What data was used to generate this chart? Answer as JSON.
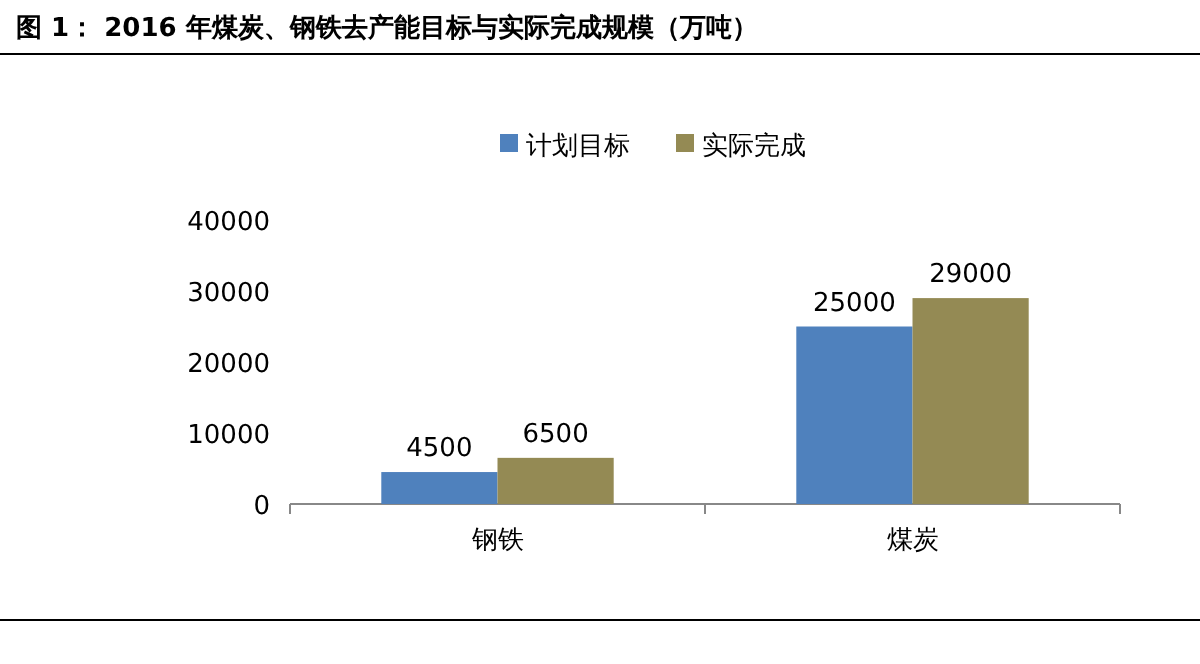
{
  "chart_data": {
    "type": "bar",
    "title": "图 1：    2016 年煤炭、钢铁去产能目标与实际完成规模（万吨）",
    "categories": [
      "钢铁",
      "煤炭"
    ],
    "series": [
      {
        "name": "计划目标",
        "color": "#4f81bd",
        "values": [
          4500,
          25000
        ]
      },
      {
        "name": "实际完成",
        "color": "#948a54",
        "values": [
          6500,
          29000
        ]
      }
    ],
    "ylim": [
      0,
      40000
    ],
    "yticks": [
      0,
      10000,
      20000,
      30000,
      40000
    ],
    "data_labels": true,
    "legend": "top",
    "grid": false
  }
}
